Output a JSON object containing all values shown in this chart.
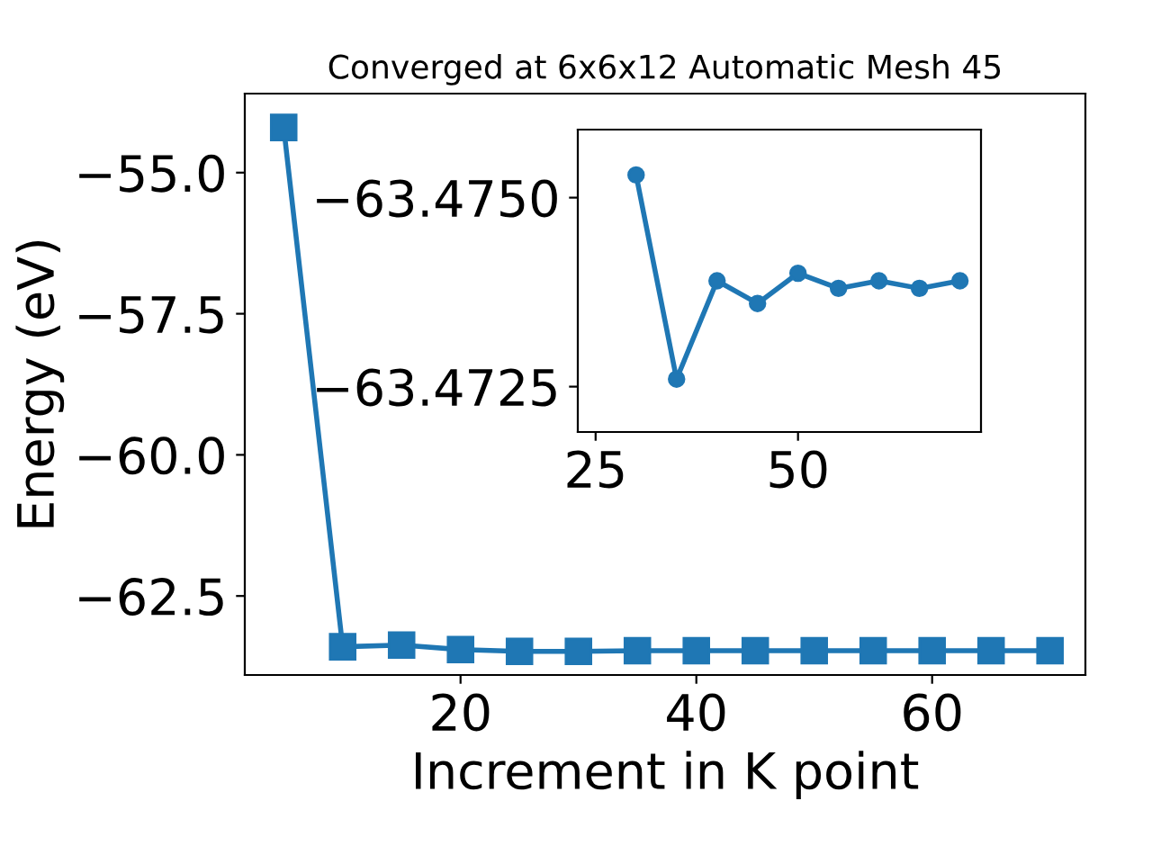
{
  "chart_data": [
    {
      "type": "line",
      "title": "Converged at 6x6x12 Automatic Mesh 45",
      "xlabel": "Increment in K point",
      "ylabel": "Energy (eV)",
      "marker": "square",
      "line_style": "solid",
      "grid": false,
      "legend": false,
      "x": [
        5,
        10,
        15,
        20,
        25,
        30,
        35,
        40,
        45,
        50,
        55,
        60,
        65,
        70
      ],
      "series": [
        {
          "color": "#1f77b4",
          "values": [
            -54.2,
            -63.4,
            -63.37,
            -63.45,
            -63.48,
            -63.48,
            -63.47,
            -63.47,
            -63.47,
            -63.47,
            -63.47,
            -63.47,
            -63.47,
            -63.47
          ]
        }
      ],
      "xlim": [
        1.7,
        73.0
      ],
      "xticks": [
        20,
        40,
        60
      ],
      "ylim": [
        -63.9,
        -53.6
      ],
      "yticks": [
        {
          "value": -55.0,
          "label": "−55.0"
        },
        {
          "value": -57.5,
          "label": "−57.5"
        },
        {
          "value": -60.0,
          "label": "−60.0"
        },
        {
          "value": -62.5,
          "label": "−62.5"
        }
      ]
    },
    {
      "type": "line",
      "marker": "circle",
      "line_style": "solid",
      "grid": false,
      "legend": false,
      "x": [
        30,
        35,
        40,
        45,
        50,
        55,
        60,
        65,
        70
      ],
      "series": [
        {
          "color": "#1f77b4",
          "values": [
            -63.4753,
            -63.4726,
            -63.4739,
            -63.4736,
            -63.474,
            -63.4738,
            -63.4739,
            -63.4738,
            -63.4739
          ]
        }
      ],
      "xlim": [
        22.8,
        72.6
      ],
      "xticks": [
        25,
        50
      ],
      "ylim": [
        -63.4719,
        -63.4759
      ],
      "yticks": [
        {
          "value": -63.475,
          "label": "−63.4750"
        },
        {
          "value": -63.4725,
          "label": "−63.4725"
        }
      ]
    }
  ]
}
